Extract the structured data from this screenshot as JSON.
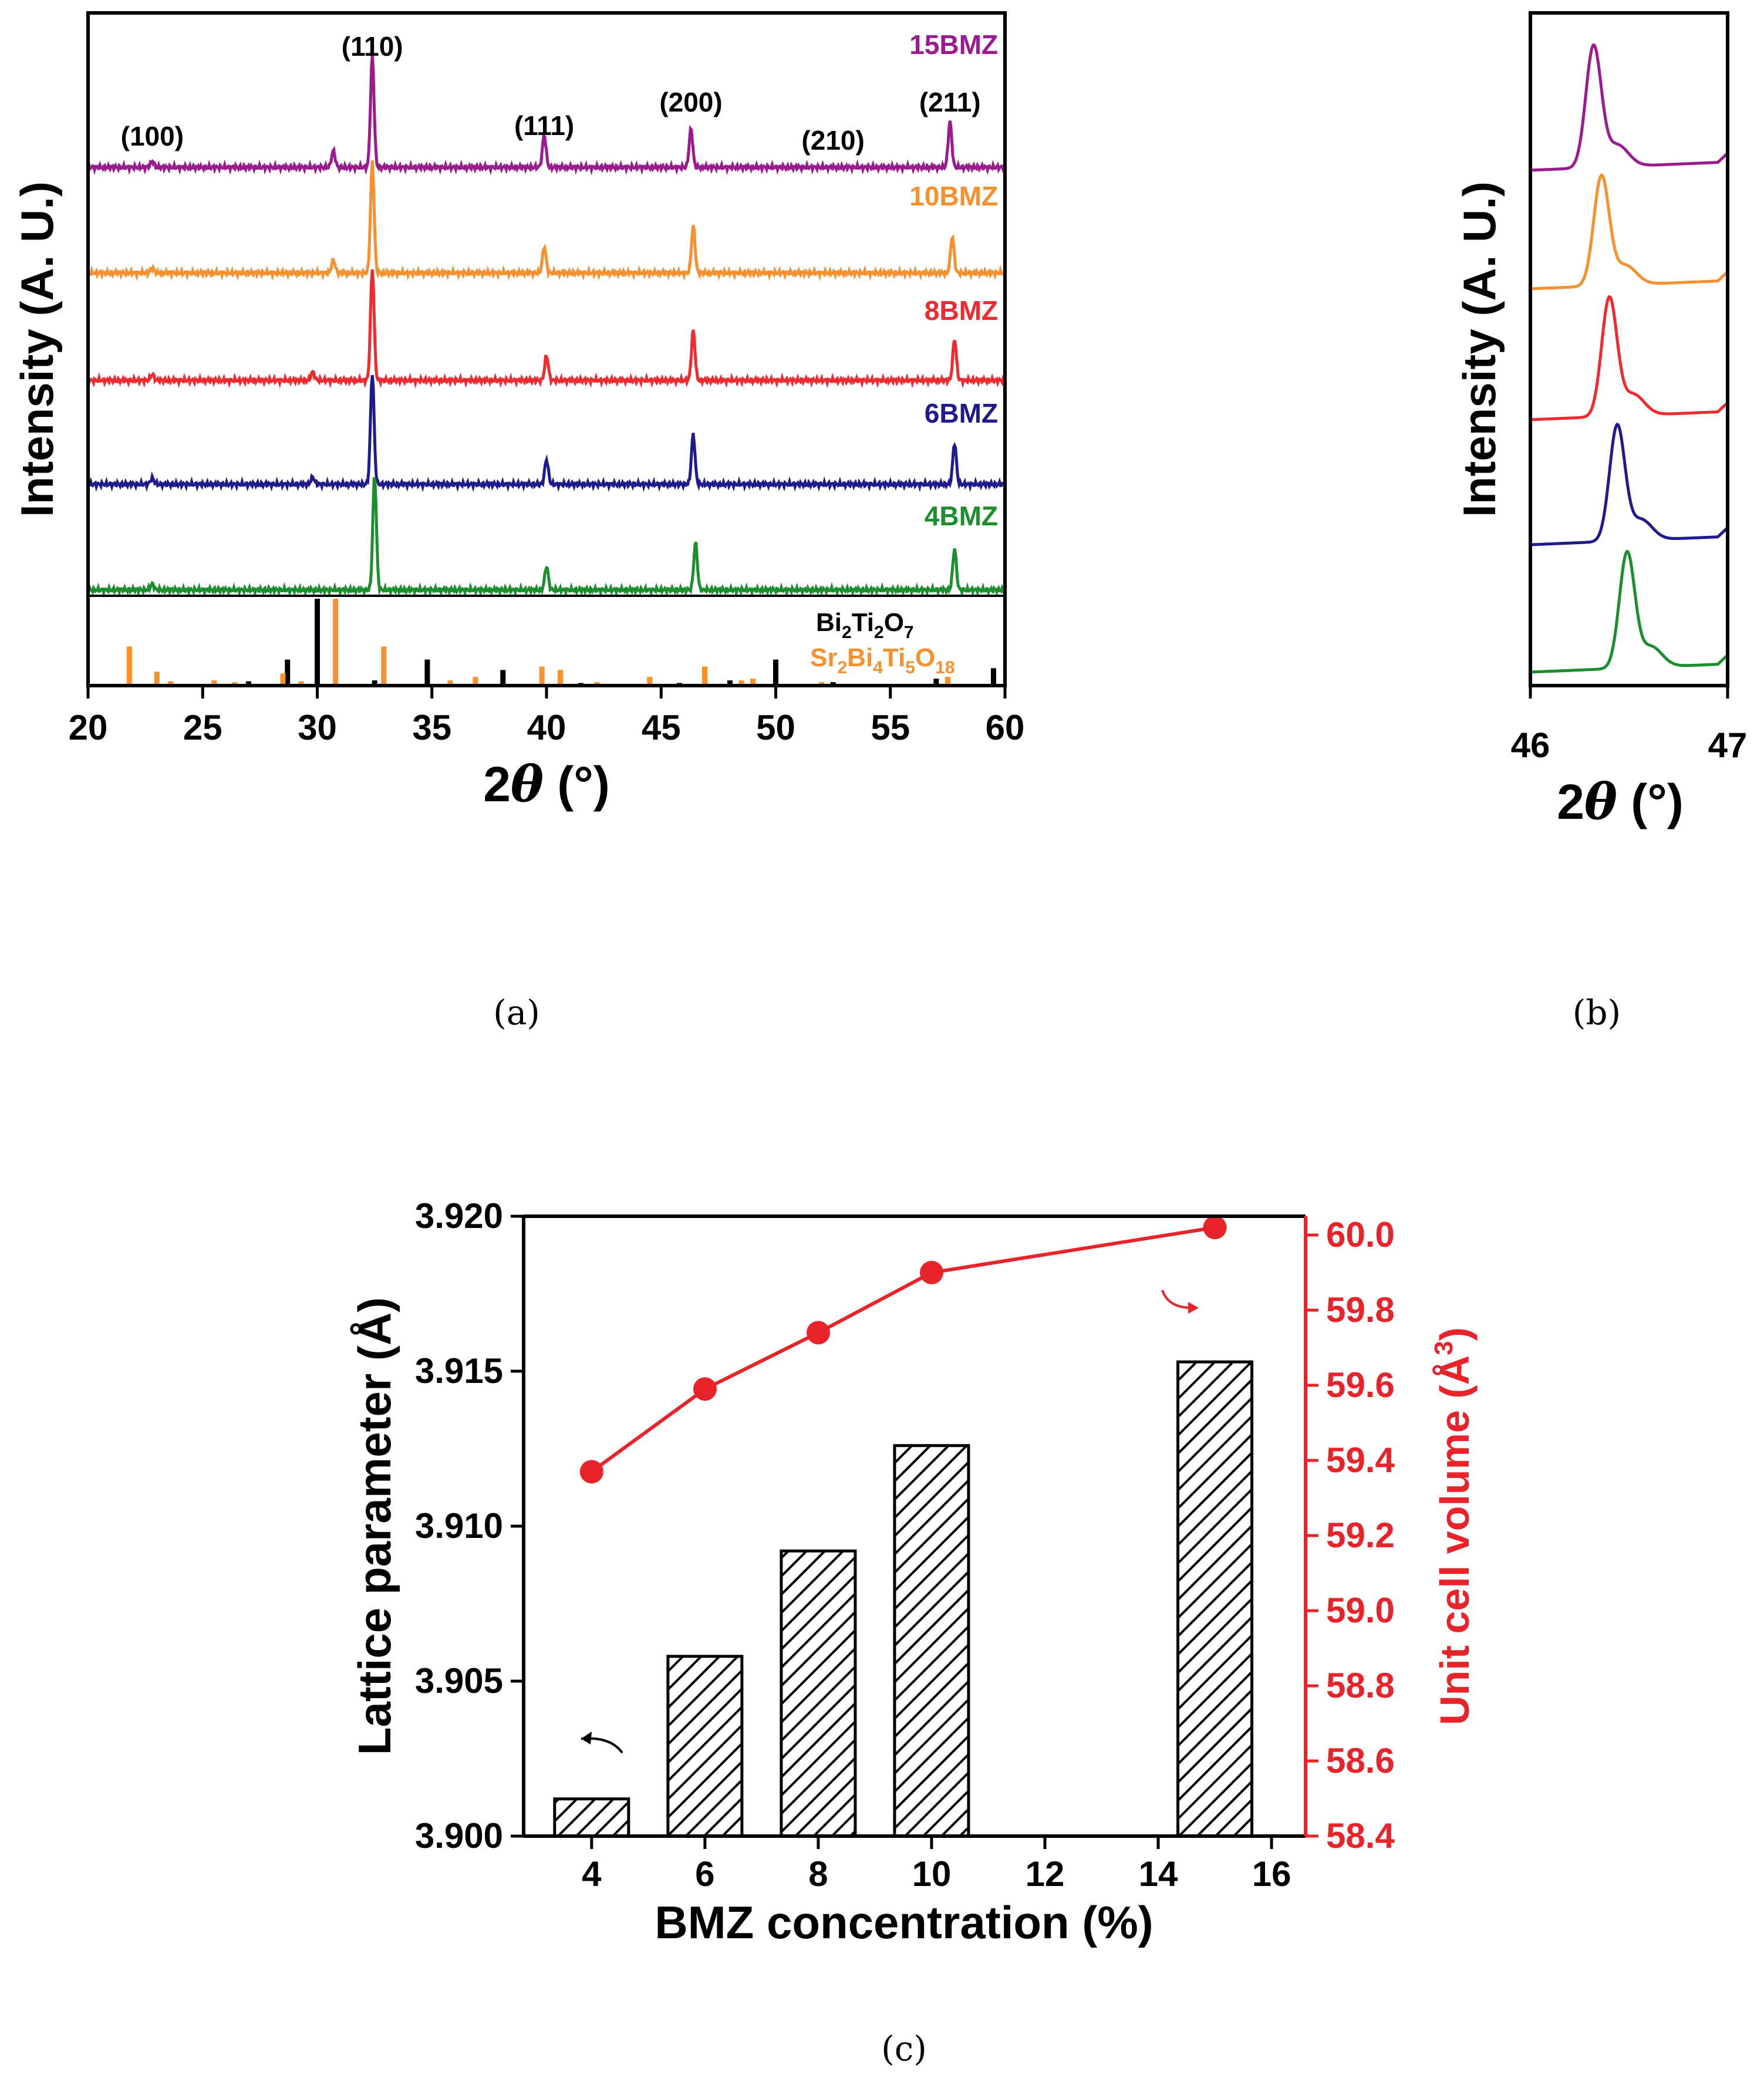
{
  "colors": {
    "s15": "#9b1a8f",
    "s10": "#f7902f",
    "s8": "#f02a2e",
    "s6": "#1f1a8e",
    "s4": "#1a8f2c",
    "ref_bi": "#000000",
    "ref_sr": "#f7902f",
    "red_axis": "#e8232a"
  },
  "chart_data": [
    {
      "id": "a",
      "type": "line",
      "caption": "(a)",
      "xlabel_prefix": "2",
      "xlabel_symbol": "θ",
      "xlabel_suffix": " (°)",
      "ylabel": "Intensity (A. U.)",
      "xlim": [
        20,
        60
      ],
      "xticks": [
        "20",
        "25",
        "30",
        "35",
        "40",
        "45",
        "50",
        "55",
        "60"
      ],
      "series_order": [
        "15BMZ",
        "10BMZ",
        "8BMZ",
        "6BMZ",
        "4BMZ"
      ],
      "series": [
        {
          "name": "15BMZ",
          "color_key": "s15",
          "peaks": [
            [
              22.8,
              10
            ],
            [
              30.7,
              28
            ],
            [
              32.4,
              190
            ],
            [
              39.9,
              55
            ],
            [
              46.3,
              65
            ],
            [
              57.6,
              78
            ]
          ]
        },
        {
          "name": "10BMZ",
          "color_key": "s10",
          "peaks": [
            [
              22.8,
              8
            ],
            [
              30.7,
              22
            ],
            [
              32.4,
              190
            ],
            [
              39.9,
              45
            ],
            [
              46.4,
              80
            ],
            [
              57.7,
              62
            ]
          ]
        },
        {
          "name": "8BMZ",
          "color_key": "s8",
          "peaks": [
            [
              22.8,
              10
            ],
            [
              29.8,
              14
            ],
            [
              32.4,
              190
            ],
            [
              40.0,
              42
            ],
            [
              46.4,
              85
            ],
            [
              57.8,
              70
            ]
          ]
        },
        {
          "name": "6BMZ",
          "color_key": "s6",
          "peaks": [
            [
              22.8,
              10
            ],
            [
              29.8,
              12
            ],
            [
              32.4,
              190
            ],
            [
              40.0,
              42
            ],
            [
              46.4,
              85
            ],
            [
              57.8,
              70
            ]
          ]
        },
        {
          "name": "4BMZ",
          "color_key": "s4",
          "peaks": [
            [
              22.8,
              10
            ],
            [
              32.5,
              195
            ],
            [
              40.0,
              40
            ],
            [
              46.5,
              80
            ],
            [
              57.8,
              70
            ]
          ]
        }
      ],
      "peak_labels": [
        {
          "text": "(100)",
          "x": 22.8
        },
        {
          "text": "(110)",
          "x": 32.4
        },
        {
          "text": "(111)",
          "x": 39.9
        },
        {
          "text": "(200)",
          "x": 46.3
        },
        {
          "text": "(210)",
          "x": 52.5
        },
        {
          "text": "(211)",
          "x": 57.6
        }
      ],
      "reference_patterns": [
        {
          "name": "Bi2Ti2O7",
          "label": "Bi",
          "sub1": "2",
          "mid": "Ti",
          "sub2": "2",
          "end": "O",
          "sub3": "7",
          "color_key": "ref_bi",
          "lines": [
            [
              21.8,
              1
            ],
            [
              27.0,
              5
            ],
            [
              28.7,
              30
            ],
            [
              30.0,
              100
            ],
            [
              32.5,
              6
            ],
            [
              34.8,
              30
            ],
            [
              38.1,
              18
            ],
            [
              41.5,
              3
            ],
            [
              45.8,
              3
            ],
            [
              48.0,
              6
            ],
            [
              50.0,
              30
            ],
            [
              52.5,
              4
            ],
            [
              57.0,
              8
            ],
            [
              59.5,
              20
            ]
          ]
        },
        {
          "name": "Sr2Bi4Ti5O18",
          "label": "Sr",
          "sub1": "2",
          "mid": "Bi",
          "sub2": "4",
          "end": "Ti",
          "sub3": "5",
          "tail": "O",
          "sub4": "18",
          "color_key": "ref_sr",
          "lines": [
            [
              21.8,
              45
            ],
            [
              23.0,
              16
            ],
            [
              23.6,
              5
            ],
            [
              25.5,
              6
            ],
            [
              26.4,
              4
            ],
            [
              28.5,
              14
            ],
            [
              29.3,
              5
            ],
            [
              30.8,
              100
            ],
            [
              32.9,
              45
            ],
            [
              35.8,
              6
            ],
            [
              36.9,
              10
            ],
            [
              39.8,
              22
            ],
            [
              40.6,
              18
            ],
            [
              42.2,
              4
            ],
            [
              44.5,
              10
            ],
            [
              46.9,
              22
            ],
            [
              48.5,
              6
            ],
            [
              49.0,
              8
            ],
            [
              52.0,
              4
            ],
            [
              57.5,
              10
            ]
          ]
        }
      ]
    },
    {
      "id": "b",
      "type": "line",
      "caption": "(b)",
      "xlabel_prefix": "2",
      "xlabel_symbol": "θ",
      "xlabel_suffix": " (°)",
      "ylabel": "Intensity (A. U.)",
      "xlim": [
        46,
        47
      ],
      "xticks": [
        "46",
        "47"
      ],
      "series": [
        {
          "name": "15BMZ",
          "color_key": "s15",
          "center": 46.32
        },
        {
          "name": "10BMZ",
          "color_key": "s10",
          "center": 46.36
        },
        {
          "name": "8BMZ",
          "color_key": "s8",
          "center": 46.4
        },
        {
          "name": "6BMZ",
          "color_key": "s6",
          "center": 46.44
        },
        {
          "name": "4BMZ",
          "color_key": "s4",
          "center": 46.49
        }
      ]
    },
    {
      "id": "c",
      "type": "bar",
      "caption": "(c)",
      "xlabel": "BMZ concentration (%)",
      "ylabel_left": "Lattice parameter (Å)",
      "ylabel_right": "Unit cell volume (Å",
      "ylabel_right_sup": "3",
      "ylabel_right_end": ")",
      "xlim": [
        2.8,
        16.6
      ],
      "xticks": [
        "4",
        "6",
        "8",
        "10",
        "12",
        "14",
        "16"
      ],
      "ylim_left": [
        3.9,
        3.92
      ],
      "yticks_left": [
        "3.900",
        "3.905",
        "3.910",
        "3.915",
        "3.920"
      ],
      "ylim_right": [
        58.4,
        60.05
      ],
      "yticks_right": [
        "58.4",
        "58.6",
        "58.8",
        "59.0",
        "59.2",
        "59.4",
        "59.6",
        "59.8",
        "60.0"
      ],
      "bar_series": {
        "name": "Lattice parameter",
        "x": [
          4,
          6,
          8,
          10,
          15
        ],
        "values": [
          3.9012,
          3.9058,
          3.9092,
          3.9126,
          3.9153
        ]
      },
      "line_series": {
        "name": "Unit cell volume",
        "x": [
          4,
          6,
          8,
          10,
          15
        ],
        "values": [
          59.37,
          59.59,
          59.74,
          59.9,
          60.02
        ]
      }
    }
  ]
}
